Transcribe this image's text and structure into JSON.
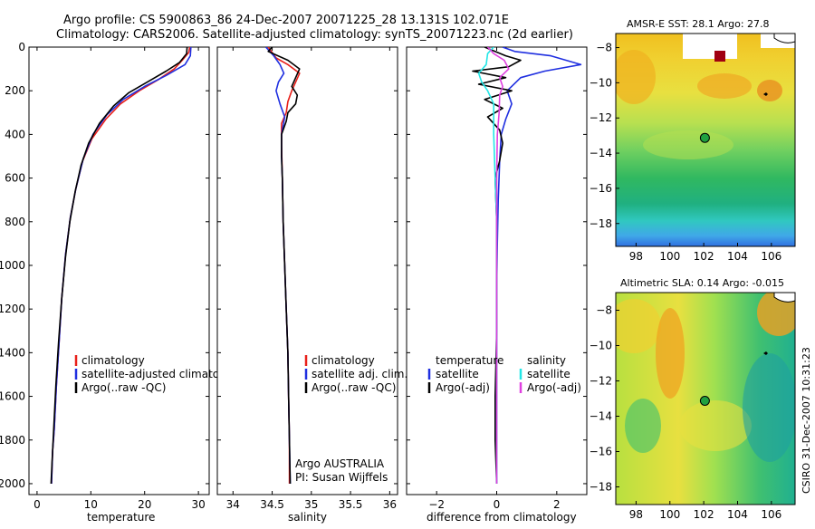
{
  "title": {
    "line1": "Argo profile: CS 5900863_86 24-Dec-2007 20071225_28 13.131S 102.071E",
    "line2": "Climatology: CARS2006. Satellite-adjusted climatology: synTS_20071223.nc (2d earlier)"
  },
  "side_caption": "CSIRO 31-Dec-2007 10:31:23",
  "colors": {
    "climatology": "#e8201a",
    "satellite": "#1f2fe0",
    "argo": "#000000",
    "cyan": "#22e6e6",
    "magenta": "#e040e0"
  },
  "chart_data": [
    {
      "type": "line",
      "id": "temperature",
      "xlabel": "temperature",
      "xlim": [
        -1.5,
        32
      ],
      "ylim": [
        0,
        2050
      ],
      "xticks": [
        0,
        10,
        20,
        30
      ],
      "yticks": [
        0,
        200,
        400,
        600,
        800,
        1000,
        1200,
        1400,
        1600,
        1800,
        2000
      ],
      "series": [
        {
          "name": "climatology",
          "color": "#e8201a",
          "points": [
            [
              28.4,
              0
            ],
            [
              28.2,
              25
            ],
            [
              27.0,
              60
            ],
            [
              25.5,
              100
            ],
            [
              22.5,
              150
            ],
            [
              19.0,
              200
            ],
            [
              15.5,
              260
            ],
            [
              12.8,
              330
            ],
            [
              10.2,
              420
            ],
            [
              8.5,
              520
            ],
            [
              7.2,
              650
            ],
            [
              6.2,
              780
            ],
            [
              5.3,
              950
            ],
            [
              4.6,
              1150
            ],
            [
              4.1,
              1350
            ],
            [
              3.6,
              1550
            ],
            [
              3.2,
              1750
            ],
            [
              2.9,
              1850
            ],
            [
              2.7,
              2000
            ]
          ]
        },
        {
          "name": "satellite-adjusted climatology",
          "color": "#1f2fe0",
          "points": [
            [
              28.6,
              0
            ],
            [
              28.5,
              40
            ],
            [
              27.5,
              80
            ],
            [
              24.0,
              130
            ],
            [
              20.0,
              180
            ],
            [
              16.0,
              240
            ],
            [
              13.0,
              310
            ],
            [
              10.4,
              400
            ],
            [
              8.6,
              510
            ],
            [
              7.2,
              650
            ],
            [
              6.2,
              780
            ],
            [
              5.3,
              950
            ],
            [
              4.6,
              1150
            ],
            [
              4.1,
              1350
            ],
            [
              3.6,
              1550
            ],
            [
              3.2,
              1750
            ],
            [
              2.9,
              1850
            ],
            [
              2.7,
              2000
            ]
          ]
        },
        {
          "name": "Argo(..raw -QC)",
          "color": "#000000",
          "points": [
            [
              27.9,
              0
            ],
            [
              27.8,
              30
            ],
            [
              26.5,
              70
            ],
            [
              24.0,
              110
            ],
            [
              20.5,
              160
            ],
            [
              17.0,
              210
            ],
            [
              14.2,
              270
            ],
            [
              11.6,
              350
            ],
            [
              9.6,
              440
            ],
            [
              8.2,
              540
            ],
            [
              7.1,
              660
            ],
            [
              6.1,
              800
            ],
            [
              5.3,
              960
            ],
            [
              4.6,
              1150
            ],
            [
              4.0,
              1350
            ],
            [
              3.5,
              1550
            ],
            [
              3.1,
              1750
            ],
            [
              2.8,
              1900
            ],
            [
              2.6,
              2000
            ]
          ]
        }
      ],
      "legend": [
        "climatology",
        "satellite-adjusted climatology",
        "Argo(..raw -QC)"
      ]
    },
    {
      "type": "line",
      "id": "salinity",
      "xlabel": "salinity",
      "xlim": [
        33.8,
        36.1
      ],
      "ylim": [
        0,
        2050
      ],
      "xticks": [
        34,
        34.5,
        35,
        35.5,
        36
      ],
      "series": [
        {
          "name": "climatology",
          "color": "#e8201a",
          "points": [
            [
              34.45,
              0
            ],
            [
              34.55,
              50
            ],
            [
              34.7,
              80
            ],
            [
              34.85,
              120
            ],
            [
              34.8,
              160
            ],
            [
              34.75,
              200
            ],
            [
              34.7,
              250
            ],
            [
              34.68,
              300
            ],
            [
              34.62,
              350
            ],
            [
              34.62,
              450
            ],
            [
              34.63,
              600
            ],
            [
              34.64,
              800
            ],
            [
              34.66,
              1000
            ],
            [
              34.68,
              1200
            ],
            [
              34.7,
              1400
            ],
            [
              34.71,
              1600
            ],
            [
              34.72,
              1800
            ],
            [
              34.72,
              2000
            ]
          ]
        },
        {
          "name": "satellite adj. clim.",
          "color": "#1f2fe0",
          "points": [
            [
              34.42,
              0
            ],
            [
              34.52,
              40
            ],
            [
              34.6,
              80
            ],
            [
              34.65,
              120
            ],
            [
              34.58,
              160
            ],
            [
              34.55,
              200
            ],
            [
              34.6,
              260
            ],
            [
              34.66,
              320
            ],
            [
              34.62,
              400
            ],
            [
              34.62,
              500
            ],
            [
              34.63,
              600
            ],
            [
              34.64,
              800
            ],
            [
              34.66,
              1000
            ],
            [
              34.68,
              1200
            ],
            [
              34.7,
              1400
            ],
            [
              34.71,
              1600
            ],
            [
              34.72,
              1800
            ],
            [
              34.73,
              2000
            ]
          ]
        },
        {
          "name": "Argo(..raw -QC)",
          "color": "#000000",
          "points": [
            [
              34.5,
              0
            ],
            [
              34.45,
              20
            ],
            [
              34.7,
              60
            ],
            [
              34.85,
              100
            ],
            [
              34.8,
              140
            ],
            [
              34.75,
              180
            ],
            [
              34.82,
              220
            ],
            [
              34.8,
              260
            ],
            [
              34.7,
              300
            ],
            [
              34.68,
              340
            ],
            [
              34.62,
              400
            ],
            [
              34.62,
              500
            ],
            [
              34.63,
              600
            ],
            [
              34.64,
              800
            ],
            [
              34.66,
              1000
            ],
            [
              34.68,
              1200
            ],
            [
              34.7,
              1400
            ],
            [
              34.71,
              1600
            ],
            [
              34.72,
              1800
            ],
            [
              34.73,
              2000
            ]
          ]
        }
      ],
      "legend": [
        "climatology",
        "satellite adj. clim.",
        "Argo(..raw -QC)"
      ],
      "annotation": [
        "Argo AUSTRALIA",
        "PI: Susan Wijffels"
      ]
    },
    {
      "type": "line",
      "id": "difference",
      "xlabel": "difference from climatology",
      "xlim": [
        -3.0,
        3.0
      ],
      "ylim": [
        0,
        2050
      ],
      "xticks": [
        -2,
        0,
        2
      ],
      "series": [
        {
          "name": "temperature satellite",
          "color": "#1f2fe0",
          "points": [
            [
              0.2,
              0
            ],
            [
              0.6,
              20
            ],
            [
              1.8,
              40
            ],
            [
              2.8,
              80
            ],
            [
              1.6,
              110
            ],
            [
              0.8,
              140
            ],
            [
              0.35,
              200
            ],
            [
              0.5,
              260
            ],
            [
              0.3,
              330
            ],
            [
              0.15,
              400
            ],
            [
              0.1,
              520
            ],
            [
              0.05,
              700
            ],
            [
              0.02,
              900
            ],
            [
              0.0,
              1100
            ],
            [
              0.0,
              1300
            ],
            [
              0.0,
              1500
            ],
            [
              0.0,
              1700
            ],
            [
              0.0,
              2000
            ]
          ]
        },
        {
          "name": "temperature Argo(-adj)",
          "color": "#000000",
          "points": [
            [
              -0.4,
              0
            ],
            [
              0.3,
              40
            ],
            [
              0.8,
              60
            ],
            [
              0.4,
              90
            ],
            [
              -0.8,
              110
            ],
            [
              0.3,
              140
            ],
            [
              -0.6,
              170
            ],
            [
              0.5,
              200
            ],
            [
              -0.4,
              240
            ],
            [
              0.2,
              280
            ],
            [
              -0.3,
              320
            ],
            [
              0.1,
              380
            ],
            [
              0.2,
              440
            ],
            [
              0.1,
              520
            ],
            [
              -0.05,
              600
            ],
            [
              0.0,
              800
            ],
            [
              0.0,
              1000
            ],
            [
              0.0,
              1300
            ],
            [
              -0.05,
              1600
            ],
            [
              -0.05,
              1800
            ],
            [
              0.0,
              2000
            ]
          ]
        },
        {
          "name": "salinity satellite",
          "color": "#22e6e6",
          "points": [
            [
              -0.1,
              0
            ],
            [
              -0.3,
              30
            ],
            [
              -0.35,
              80
            ],
            [
              -0.6,
              120
            ],
            [
              -0.5,
              160
            ],
            [
              -0.3,
              200
            ],
            [
              -0.1,
              260
            ],
            [
              -0.1,
              400
            ],
            [
              -0.05,
              600
            ],
            [
              0.0,
              800
            ],
            [
              0.0,
              1000
            ],
            [
              0.0,
              1200
            ],
            [
              0.0,
              1400
            ],
            [
              0.0,
              1600
            ],
            [
              0.0,
              1800
            ],
            [
              0.0,
              2000
            ]
          ]
        },
        {
          "name": "salinity Argo(-adj)",
          "color": "#e040e0",
          "points": [
            [
              -0.3,
              0
            ],
            [
              -0.1,
              30
            ],
            [
              0.25,
              60
            ],
            [
              0.4,
              100
            ],
            [
              0.1,
              140
            ],
            [
              0.2,
              180
            ],
            [
              0.1,
              220
            ],
            [
              0.08,
              300
            ],
            [
              0.02,
              400
            ],
            [
              0.0,
              600
            ],
            [
              0.0,
              1000
            ],
            [
              0.0,
              2000
            ]
          ]
        }
      ],
      "legend_headers": [
        "temperature",
        "salinity"
      ],
      "legend_left": [
        "satellite",
        "Argo(-adj)"
      ],
      "legend_right": [
        "satellite",
        "Argo(-adj)"
      ]
    },
    {
      "type": "heatmap",
      "id": "sst",
      "title": "AMSR-E SST: 28.1 Argo: 27.8",
      "xticks": [
        98,
        100,
        102,
        104,
        106
      ],
      "yticks": [
        -8,
        -10,
        -12,
        -14,
        -16,
        -18
      ],
      "xlim": [
        96.8,
        107.4
      ],
      "ylim": [
        -19.3,
        -7.2
      ],
      "argo_point": [
        102.07,
        -13.13
      ]
    },
    {
      "type": "heatmap",
      "id": "sla",
      "title": "Altimetric SLA: 0.14 Argo: -0.015",
      "xticks": [
        98,
        100,
        102,
        104,
        106
      ],
      "yticks": [
        -8,
        -10,
        -12,
        -14,
        -16,
        -18
      ],
      "xlim": [
        96.8,
        107.4
      ],
      "ylim": [
        -19.0,
        -7.0
      ],
      "argo_point": [
        102.07,
        -13.13
      ]
    }
  ]
}
